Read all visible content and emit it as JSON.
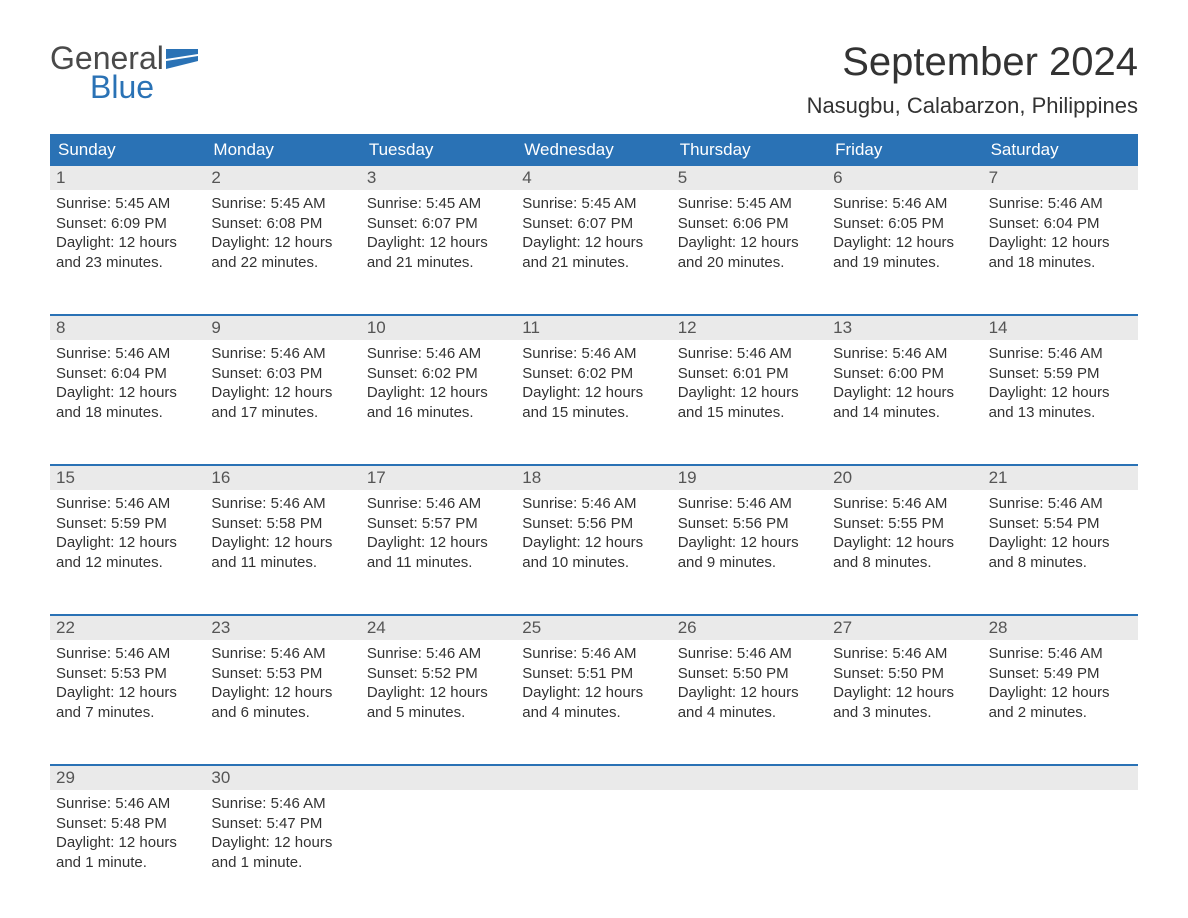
{
  "logo": {
    "text_general": "General",
    "text_blue": "Blue",
    "flag_color": "#2a72b5"
  },
  "title": "September 2024",
  "location": "Nasugbu, Calabarzon, Philippines",
  "colors": {
    "header_bg": "#2a72b5",
    "day_num_bg": "#eaeaea",
    "background": "#ffffff",
    "text_dark": "#333333",
    "text_white": "#ffffff"
  },
  "day_headers": [
    "Sunday",
    "Monday",
    "Tuesday",
    "Wednesday",
    "Thursday",
    "Friday",
    "Saturday"
  ],
  "weeks": [
    {
      "days": [
        {
          "num": "1",
          "sunrise": "Sunrise: 5:45 AM",
          "sunset": "Sunset: 6:09 PM",
          "daylight1": "Daylight: 12 hours",
          "daylight2": "and 23 minutes."
        },
        {
          "num": "2",
          "sunrise": "Sunrise: 5:45 AM",
          "sunset": "Sunset: 6:08 PM",
          "daylight1": "Daylight: 12 hours",
          "daylight2": "and 22 minutes."
        },
        {
          "num": "3",
          "sunrise": "Sunrise: 5:45 AM",
          "sunset": "Sunset: 6:07 PM",
          "daylight1": "Daylight: 12 hours",
          "daylight2": "and 21 minutes."
        },
        {
          "num": "4",
          "sunrise": "Sunrise: 5:45 AM",
          "sunset": "Sunset: 6:07 PM",
          "daylight1": "Daylight: 12 hours",
          "daylight2": "and 21 minutes."
        },
        {
          "num": "5",
          "sunrise": "Sunrise: 5:45 AM",
          "sunset": "Sunset: 6:06 PM",
          "daylight1": "Daylight: 12 hours",
          "daylight2": "and 20 minutes."
        },
        {
          "num": "6",
          "sunrise": "Sunrise: 5:46 AM",
          "sunset": "Sunset: 6:05 PM",
          "daylight1": "Daylight: 12 hours",
          "daylight2": "and 19 minutes."
        },
        {
          "num": "7",
          "sunrise": "Sunrise: 5:46 AM",
          "sunset": "Sunset: 6:04 PM",
          "daylight1": "Daylight: 12 hours",
          "daylight2": "and 18 minutes."
        }
      ]
    },
    {
      "days": [
        {
          "num": "8",
          "sunrise": "Sunrise: 5:46 AM",
          "sunset": "Sunset: 6:04 PM",
          "daylight1": "Daylight: 12 hours",
          "daylight2": "and 18 minutes."
        },
        {
          "num": "9",
          "sunrise": "Sunrise: 5:46 AM",
          "sunset": "Sunset: 6:03 PM",
          "daylight1": "Daylight: 12 hours",
          "daylight2": "and 17 minutes."
        },
        {
          "num": "10",
          "sunrise": "Sunrise: 5:46 AM",
          "sunset": "Sunset: 6:02 PM",
          "daylight1": "Daylight: 12 hours",
          "daylight2": "and 16 minutes."
        },
        {
          "num": "11",
          "sunrise": "Sunrise: 5:46 AM",
          "sunset": "Sunset: 6:02 PM",
          "daylight1": "Daylight: 12 hours",
          "daylight2": "and 15 minutes."
        },
        {
          "num": "12",
          "sunrise": "Sunrise: 5:46 AM",
          "sunset": "Sunset: 6:01 PM",
          "daylight1": "Daylight: 12 hours",
          "daylight2": "and 15 minutes."
        },
        {
          "num": "13",
          "sunrise": "Sunrise: 5:46 AM",
          "sunset": "Sunset: 6:00 PM",
          "daylight1": "Daylight: 12 hours",
          "daylight2": "and 14 minutes."
        },
        {
          "num": "14",
          "sunrise": "Sunrise: 5:46 AM",
          "sunset": "Sunset: 5:59 PM",
          "daylight1": "Daylight: 12 hours",
          "daylight2": "and 13 minutes."
        }
      ]
    },
    {
      "days": [
        {
          "num": "15",
          "sunrise": "Sunrise: 5:46 AM",
          "sunset": "Sunset: 5:59 PM",
          "daylight1": "Daylight: 12 hours",
          "daylight2": "and 12 minutes."
        },
        {
          "num": "16",
          "sunrise": "Sunrise: 5:46 AM",
          "sunset": "Sunset: 5:58 PM",
          "daylight1": "Daylight: 12 hours",
          "daylight2": "and 11 minutes."
        },
        {
          "num": "17",
          "sunrise": "Sunrise: 5:46 AM",
          "sunset": "Sunset: 5:57 PM",
          "daylight1": "Daylight: 12 hours",
          "daylight2": "and 11 minutes."
        },
        {
          "num": "18",
          "sunrise": "Sunrise: 5:46 AM",
          "sunset": "Sunset: 5:56 PM",
          "daylight1": "Daylight: 12 hours",
          "daylight2": "and 10 minutes."
        },
        {
          "num": "19",
          "sunrise": "Sunrise: 5:46 AM",
          "sunset": "Sunset: 5:56 PM",
          "daylight1": "Daylight: 12 hours",
          "daylight2": "and 9 minutes."
        },
        {
          "num": "20",
          "sunrise": "Sunrise: 5:46 AM",
          "sunset": "Sunset: 5:55 PM",
          "daylight1": "Daylight: 12 hours",
          "daylight2": "and 8 minutes."
        },
        {
          "num": "21",
          "sunrise": "Sunrise: 5:46 AM",
          "sunset": "Sunset: 5:54 PM",
          "daylight1": "Daylight: 12 hours",
          "daylight2": "and 8 minutes."
        }
      ]
    },
    {
      "days": [
        {
          "num": "22",
          "sunrise": "Sunrise: 5:46 AM",
          "sunset": "Sunset: 5:53 PM",
          "daylight1": "Daylight: 12 hours",
          "daylight2": "and 7 minutes."
        },
        {
          "num": "23",
          "sunrise": "Sunrise: 5:46 AM",
          "sunset": "Sunset: 5:53 PM",
          "daylight1": "Daylight: 12 hours",
          "daylight2": "and 6 minutes."
        },
        {
          "num": "24",
          "sunrise": "Sunrise: 5:46 AM",
          "sunset": "Sunset: 5:52 PM",
          "daylight1": "Daylight: 12 hours",
          "daylight2": "and 5 minutes."
        },
        {
          "num": "25",
          "sunrise": "Sunrise: 5:46 AM",
          "sunset": "Sunset: 5:51 PM",
          "daylight1": "Daylight: 12 hours",
          "daylight2": "and 4 minutes."
        },
        {
          "num": "26",
          "sunrise": "Sunrise: 5:46 AM",
          "sunset": "Sunset: 5:50 PM",
          "daylight1": "Daylight: 12 hours",
          "daylight2": "and 4 minutes."
        },
        {
          "num": "27",
          "sunrise": "Sunrise: 5:46 AM",
          "sunset": "Sunset: 5:50 PM",
          "daylight1": "Daylight: 12 hours",
          "daylight2": "and 3 minutes."
        },
        {
          "num": "28",
          "sunrise": "Sunrise: 5:46 AM",
          "sunset": "Sunset: 5:49 PM",
          "daylight1": "Daylight: 12 hours",
          "daylight2": "and 2 minutes."
        }
      ]
    },
    {
      "days": [
        {
          "num": "29",
          "sunrise": "Sunrise: 5:46 AM",
          "sunset": "Sunset: 5:48 PM",
          "daylight1": "Daylight: 12 hours",
          "daylight2": "and 1 minute."
        },
        {
          "num": "30",
          "sunrise": "Sunrise: 5:46 AM",
          "sunset": "Sunset: 5:47 PM",
          "daylight1": "Daylight: 12 hours",
          "daylight2": "and 1 minute."
        },
        {
          "num": "",
          "sunrise": "",
          "sunset": "",
          "daylight1": "",
          "daylight2": ""
        },
        {
          "num": "",
          "sunrise": "",
          "sunset": "",
          "daylight1": "",
          "daylight2": ""
        },
        {
          "num": "",
          "sunrise": "",
          "sunset": "",
          "daylight1": "",
          "daylight2": ""
        },
        {
          "num": "",
          "sunrise": "",
          "sunset": "",
          "daylight1": "",
          "daylight2": ""
        },
        {
          "num": "",
          "sunrise": "",
          "sunset": "",
          "daylight1": "",
          "daylight2": ""
        }
      ]
    }
  ]
}
